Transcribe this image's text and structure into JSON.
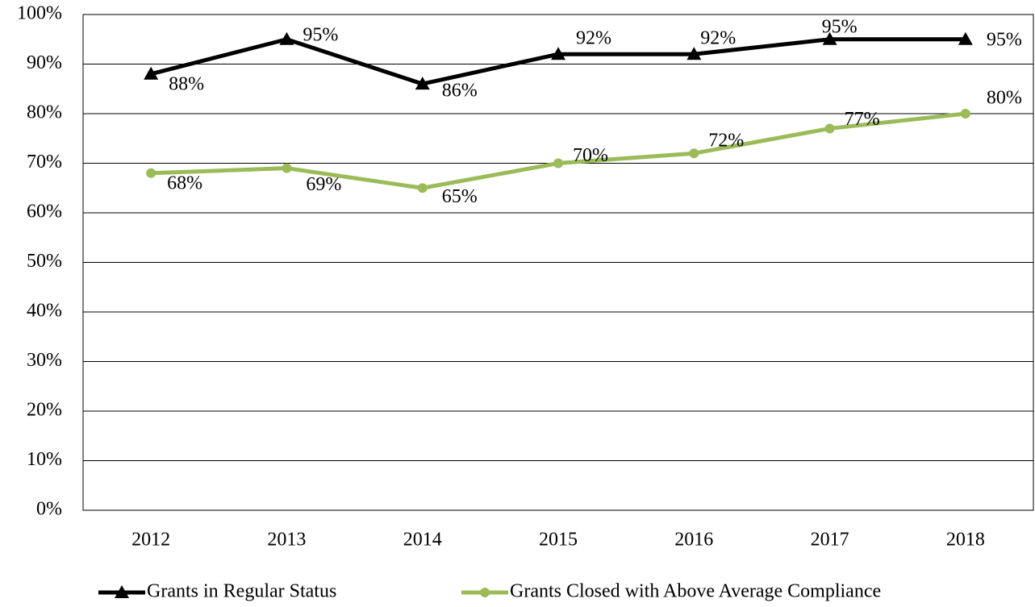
{
  "chart_data": {
    "type": "line",
    "categories": [
      "2012",
      "2013",
      "2014",
      "2015",
      "2016",
      "2017",
      "2018"
    ],
    "series": [
      {
        "name": "Grants in Regular Status",
        "color": "#000000",
        "marker": "triangle",
        "values": [
          88,
          95,
          86,
          92,
          92,
          95,
          95
        ],
        "value_labels": [
          "88%",
          "95%",
          "86%",
          "92%",
          "92%",
          "95%",
          "95%"
        ]
      },
      {
        "name": "Grants Closed with Above Average Compliance",
        "color": "#9bbb59",
        "marker": "circle",
        "values": [
          68,
          69,
          65,
          70,
          72,
          77,
          80
        ],
        "value_labels": [
          "68%",
          "69%",
          "65%",
          "70%",
          "72%",
          "77%",
          "80%"
        ]
      }
    ],
    "ylim": [
      0,
      100
    ],
    "yticks": [
      {
        "value": 0,
        "label": "0%"
      },
      {
        "value": 10,
        "label": "10%"
      },
      {
        "value": 20,
        "label": "20%"
      },
      {
        "value": 30,
        "label": "30%"
      },
      {
        "value": 40,
        "label": "40%"
      },
      {
        "value": 50,
        "label": "50%"
      },
      {
        "value": 60,
        "label": "60%"
      },
      {
        "value": 70,
        "label": "70%"
      },
      {
        "value": 80,
        "label": "80%"
      },
      {
        "value": 90,
        "label": "90%"
      },
      {
        "value": 100,
        "label": "100%"
      }
    ],
    "grid": true,
    "legend": "bottom"
  }
}
